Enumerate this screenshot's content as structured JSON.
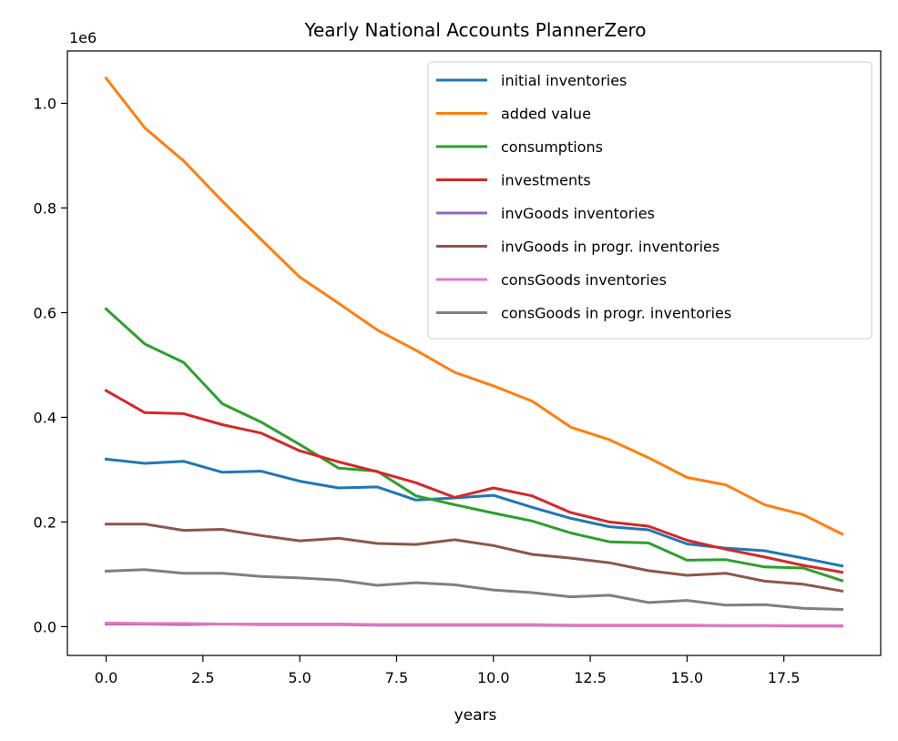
{
  "chart_data": {
    "type": "line",
    "title": "Yearly National Accounts PlannerZero",
    "xlabel": "years",
    "ylabel": "",
    "y_scale_label": "1e6",
    "xlim": [
      -1,
      20
    ],
    "ylim": [
      -0.055,
      1.1
    ],
    "x_ticks": [
      0.0,
      2.5,
      5.0,
      7.5,
      10.0,
      12.5,
      15.0,
      17.5
    ],
    "x_tick_labels": [
      "0.0",
      "2.5",
      "5.0",
      "7.5",
      "10.0",
      "12.5",
      "15.0",
      "17.5"
    ],
    "y_ticks": [
      0.0,
      0.2,
      0.4,
      0.6,
      0.8,
      1.0
    ],
    "y_tick_labels": [
      "0.0",
      "0.2",
      "0.4",
      "0.6",
      "0.8",
      "1.0"
    ],
    "legend_position": "top-right",
    "grid": false,
    "x": [
      0,
      1,
      2,
      3,
      4,
      5,
      6,
      7,
      8,
      9,
      10,
      11,
      12,
      13,
      14,
      15,
      16,
      17,
      18,
      19
    ],
    "series": [
      {
        "name": "initial inventories",
        "color": "#1f77b4",
        "values": [
          0.32,
          0.312,
          0.316,
          0.295,
          0.297,
          0.278,
          0.265,
          0.267,
          0.242,
          0.246,
          0.251,
          0.228,
          0.207,
          0.191,
          0.185,
          0.158,
          0.15,
          0.145,
          0.131,
          0.116
        ]
      },
      {
        "name": "added value",
        "color": "#ff7f0e",
        "values": [
          1.048,
          0.953,
          0.89,
          0.813,
          0.74,
          0.668,
          0.618,
          0.567,
          0.528,
          0.486,
          0.46,
          0.431,
          0.381,
          0.357,
          0.323,
          0.285,
          0.271,
          0.233,
          0.214,
          0.177
        ]
      },
      {
        "name": "consumptions",
        "color": "#2ca02c",
        "values": [
          0.607,
          0.54,
          0.505,
          0.426,
          0.391,
          0.348,
          0.303,
          0.297,
          0.25,
          0.233,
          0.217,
          0.202,
          0.179,
          0.162,
          0.16,
          0.127,
          0.128,
          0.114,
          0.112,
          0.088
        ]
      },
      {
        "name": "investments",
        "color": "#d62728",
        "values": [
          0.451,
          0.409,
          0.407,
          0.386,
          0.37,
          0.336,
          0.315,
          0.296,
          0.275,
          0.247,
          0.265,
          0.25,
          0.218,
          0.2,
          0.192,
          0.165,
          0.148,
          0.133,
          0.117,
          0.104
        ]
      },
      {
        "name": "invGoods inventories",
        "color": "#9467bd",
        "values": [
          0.005,
          0.005,
          0.004,
          0.005,
          0.004,
          0.004,
          0.004,
          0.003,
          0.003,
          0.003,
          0.003,
          0.003,
          0.002,
          0.002,
          0.002,
          0.002,
          0.002,
          0.002,
          0.001,
          0.001
        ]
      },
      {
        "name": "invGoods in progr. inventories",
        "color": "#8c564b",
        "values": [
          0.196,
          0.196,
          0.184,
          0.186,
          0.174,
          0.164,
          0.169,
          0.159,
          0.157,
          0.166,
          0.155,
          0.138,
          0.131,
          0.122,
          0.107,
          0.098,
          0.102,
          0.087,
          0.081,
          0.068
        ]
      },
      {
        "name": "consGoods inventories",
        "color": "#e377c2",
        "values": [
          0.007,
          0.006,
          0.006,
          0.005,
          0.005,
          0.005,
          0.005,
          0.004,
          0.004,
          0.004,
          0.004,
          0.004,
          0.003,
          0.003,
          0.003,
          0.003,
          0.002,
          0.002,
          0.002,
          0.002
        ]
      },
      {
        "name": "consGoods in progr. inventories",
        "color": "#7f7f7f",
        "values": [
          0.106,
          0.109,
          0.102,
          0.102,
          0.096,
          0.093,
          0.089,
          0.079,
          0.084,
          0.08,
          0.07,
          0.065,
          0.057,
          0.06,
          0.046,
          0.05,
          0.041,
          0.042,
          0.035,
          0.033
        ]
      }
    ]
  }
}
